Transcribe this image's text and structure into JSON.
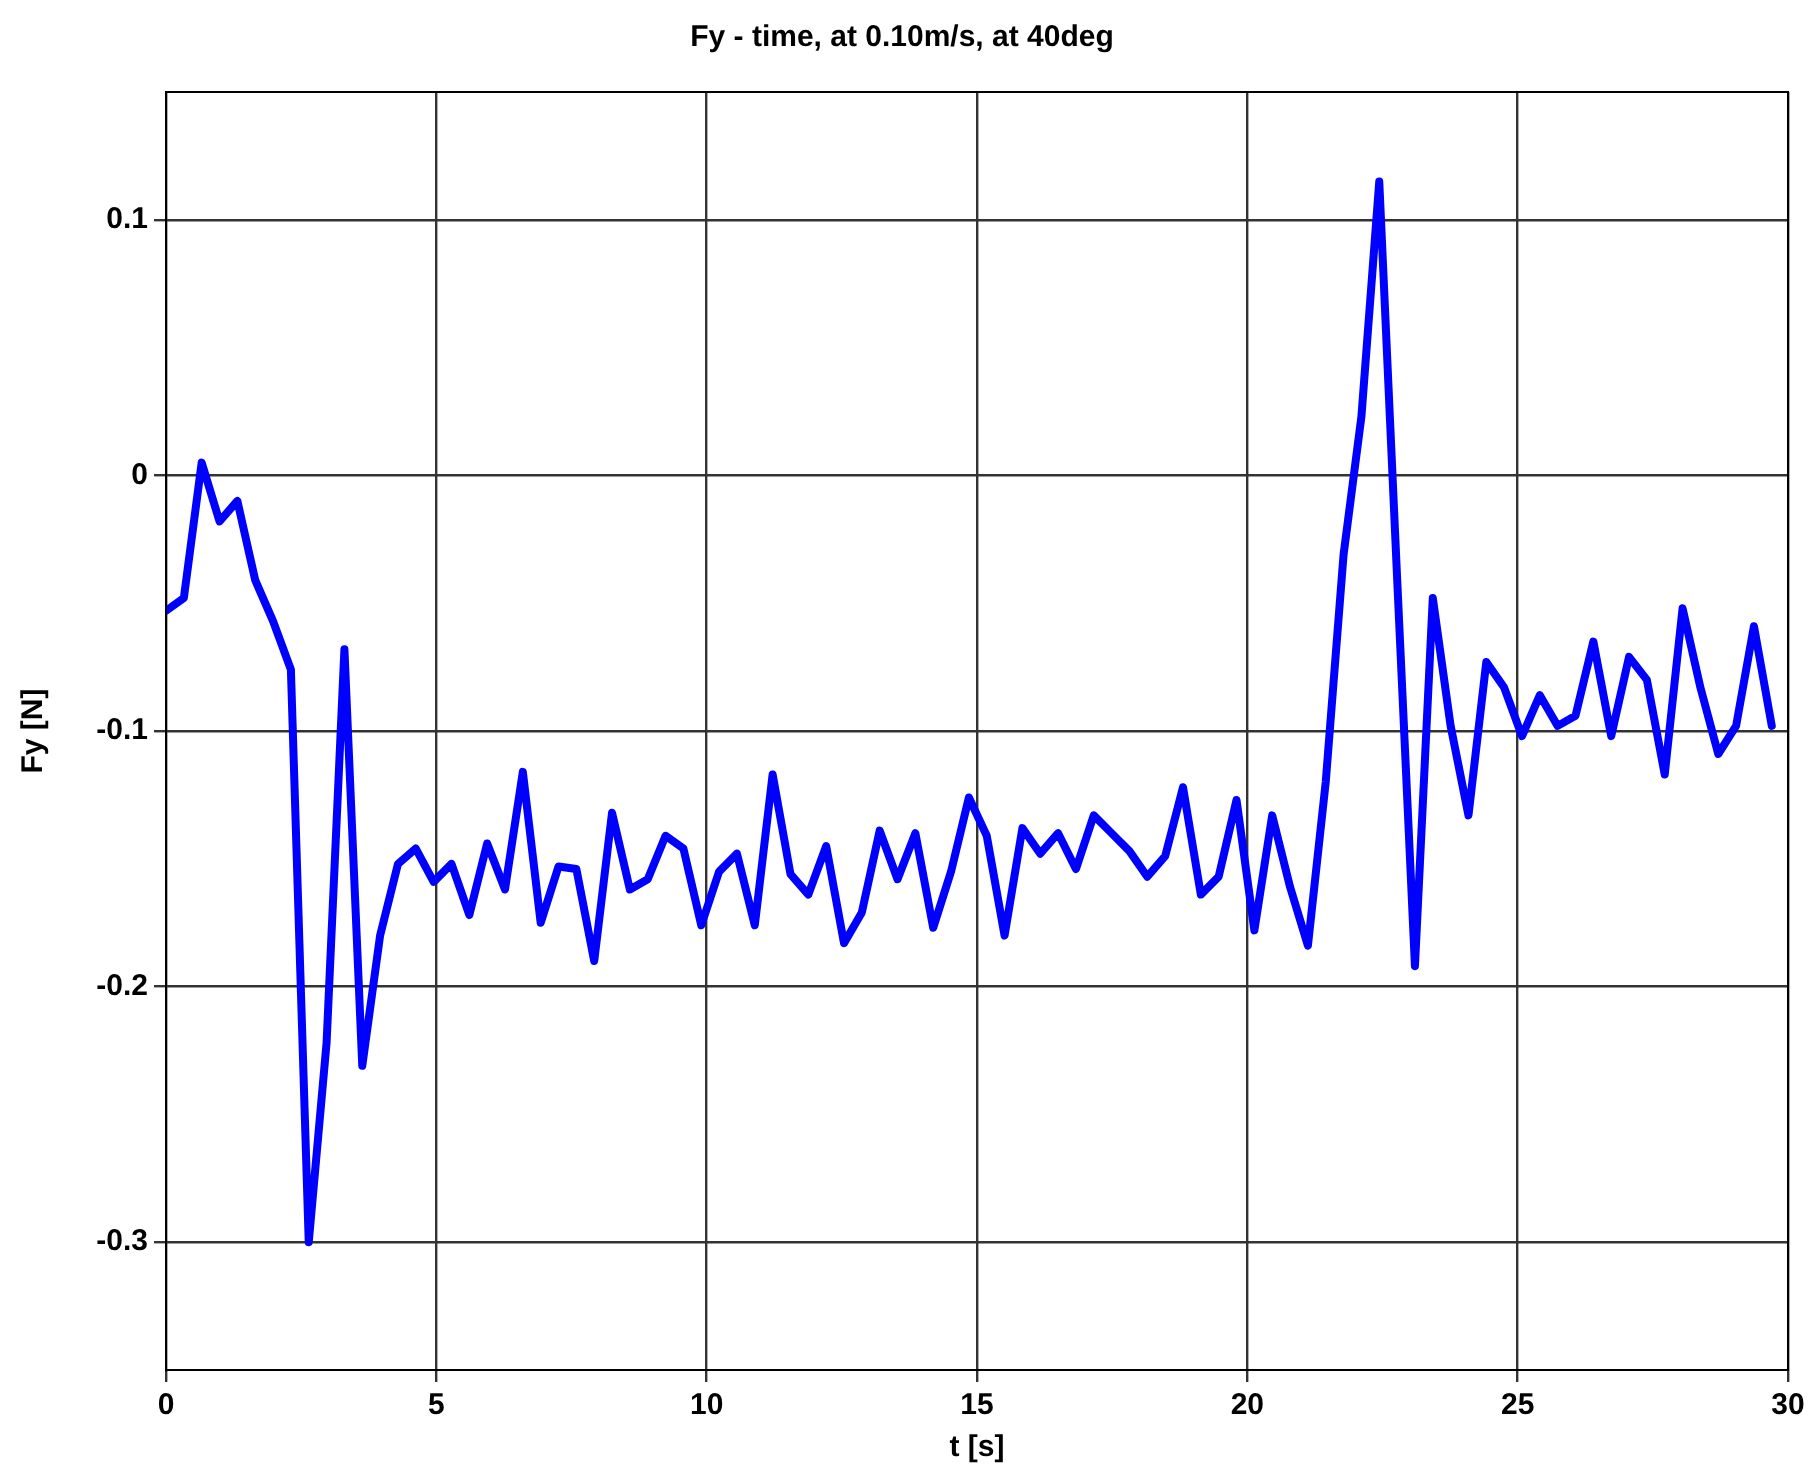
{
  "chart_data": {
    "type": "line",
    "title": "Fy - time, at 0.10m/s, at 40deg",
    "xlabel": "t [s]",
    "ylabel": "Fy [N]",
    "x": [
      0,
      0.33,
      0.66,
      0.99,
      1.32,
      1.65,
      1.98,
      2.31,
      2.64,
      2.97,
      3.3,
      3.63,
      3.96,
      4.29,
      4.62,
      4.95,
      5.28,
      5.61,
      5.94,
      6.27,
      6.6,
      6.93,
      7.26,
      7.59,
      7.92,
      8.25,
      8.58,
      8.91,
      9.24,
      9.57,
      9.9,
      10.23,
      10.56,
      10.89,
      11.22,
      11.55,
      11.88,
      12.21,
      12.54,
      12.87,
      13.2,
      13.53,
      13.86,
      14.19,
      14.52,
      14.85,
      15.18,
      15.51,
      15.84,
      16.17,
      16.5,
      16.83,
      17.16,
      17.49,
      17.82,
      18.15,
      18.48,
      18.81,
      19.14,
      19.47,
      19.8,
      20.13,
      20.46,
      20.79,
      21.12,
      21.45,
      21.78,
      22.11,
      22.44,
      22.77,
      23.1,
      23.43,
      23.76,
      24.09,
      24.42,
      24.75,
      25.08,
      25.41,
      25.74,
      26.07,
      26.4,
      26.73,
      27.06,
      27.39,
      27.72,
      28.05,
      28.38,
      28.71,
      29.04,
      29.37,
      29.7
    ],
    "series": [
      {
        "color": "#0000ff",
        "values": [
          -0.053,
          -0.048,
          0.005,
          -0.018,
          -0.01,
          -0.041,
          -0.057,
          -0.076,
          -0.3,
          -0.222,
          -0.068,
          -0.231,
          -0.18,
          -0.152,
          -0.146,
          -0.159,
          -0.152,
          -0.172,
          -0.144,
          -0.162,
          -0.116,
          -0.175,
          -0.153,
          -0.154,
          -0.19,
          -0.132,
          -0.162,
          -0.158,
          -0.141,
          -0.146,
          -0.176,
          -0.155,
          -0.148,
          -0.176,
          -0.117,
          -0.156,
          -0.164,
          -0.145,
          -0.183,
          -0.171,
          -0.139,
          -0.158,
          -0.14,
          -0.177,
          -0.155,
          -0.126,
          -0.141,
          -0.18,
          -0.138,
          -0.148,
          -0.14,
          -0.154,
          -0.133,
          -0.14,
          -0.147,
          -0.157,
          -0.149,
          -0.122,
          -0.164,
          -0.157,
          -0.127,
          -0.178,
          -0.133,
          -0.161,
          -0.184,
          -0.12,
          -0.031,
          0.023,
          0.115,
          -0.04,
          -0.192,
          -0.048,
          -0.098,
          -0.133,
          -0.073,
          -0.083,
          -0.102,
          -0.086,
          -0.098,
          -0.094,
          -0.065,
          -0.102,
          -0.071,
          -0.08,
          -0.117,
          -0.052,
          -0.083,
          -0.109,
          -0.098,
          -0.059,
          -0.098
        ]
      }
    ],
    "xlim": [
      0,
      30
    ],
    "xticks": [
      0,
      5,
      10,
      15,
      20,
      25,
      30
    ],
    "ylim": [
      -0.35,
      0.15
    ],
    "yticks": [
      -0.3,
      -0.2,
      -0.1,
      0,
      0.1
    ],
    "grid": true,
    "legend": false,
    "marker": "none",
    "line_style": "solid"
  }
}
